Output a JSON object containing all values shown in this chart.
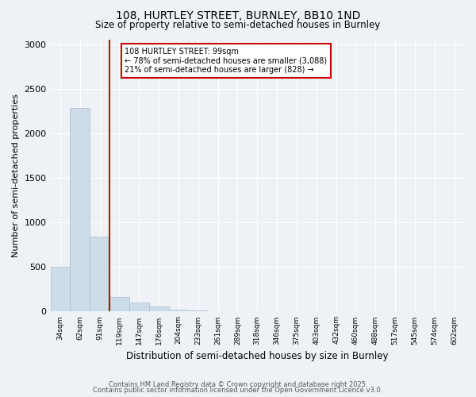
{
  "title": "108, HURTLEY STREET, BURNLEY, BB10 1ND",
  "subtitle": "Size of property relative to semi-detached houses in Burnley",
  "xlabel": "Distribution of semi-detached houses by size in Burnley",
  "ylabel": "Number of semi-detached properties",
  "property_label": "108 HURTLEY STREET: 99sqm",
  "annotation_line1": "← 78% of semi-detached houses are smaller (3,088)",
  "annotation_line2": "21% of semi-detached houses are larger (828) →",
  "categories": [
    "34sqm",
    "62sqm",
    "91sqm",
    "119sqm",
    "147sqm",
    "176sqm",
    "204sqm",
    "233sqm",
    "261sqm",
    "289sqm",
    "318sqm",
    "346sqm",
    "375sqm",
    "403sqm",
    "432sqm",
    "460sqm",
    "488sqm",
    "517sqm",
    "545sqm",
    "574sqm",
    "602sqm"
  ],
  "values": [
    500,
    2280,
    840,
    160,
    100,
    60,
    20,
    10,
    5,
    5,
    5,
    0,
    0,
    0,
    0,
    0,
    0,
    0,
    0,
    0,
    0
  ],
  "bar_color": "#ccdce8",
  "bar_edge_color": "#aabbcc",
  "vline_x_index": 2,
  "vline_color": "#cc0000",
  "box_color": "#cc0000",
  "ylim": [
    0,
    3050
  ],
  "yticks": [
    0,
    500,
    1000,
    1500,
    2000,
    2500,
    3000
  ],
  "background_color": "#eef2f7",
  "grid_color": "#ffffff",
  "footer_line1": "Contains HM Land Registry data © Crown copyright and database right 2025.",
  "footer_line2": "Contains public sector information licensed under the Open Government Licence v3.0."
}
